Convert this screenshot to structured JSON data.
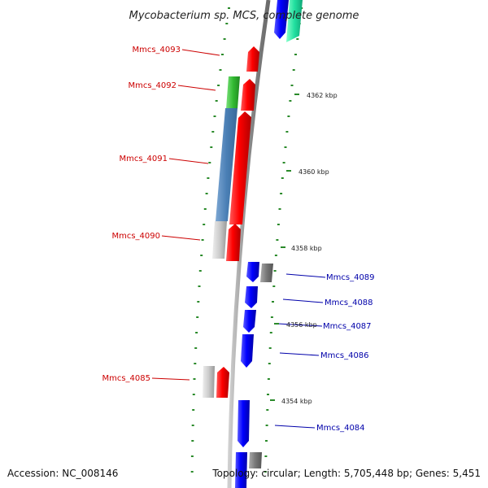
{
  "title": "Mycobacterium sp. MCS, complete genome",
  "footer": {
    "accession": "Accession: NC_008146",
    "topology": "Topology: circular; Length: 5,705,448 bp; Genes: 5,451"
  },
  "colors": {
    "forward_label": "#cc0000",
    "reverse_label": "#0000aa",
    "tick": "#2a8a2a",
    "backbone": "#888888"
  },
  "kbp_labels": [
    {
      "id": "4362",
      "text": "4362 kbp"
    },
    {
      "id": "4360",
      "text": "4360 kbp"
    },
    {
      "id": "4358",
      "text": "4358 kbp"
    },
    {
      "id": "4356",
      "text": "4356 kbp"
    },
    {
      "id": "4354",
      "text": "4354 kbp"
    }
  ],
  "forward_genes": [
    {
      "id": "mmcs-4093",
      "label": "Mmcs_4093"
    },
    {
      "id": "mmcs-4092",
      "label": "Mmcs_4092"
    },
    {
      "id": "mmcs-4091",
      "label": "Mmcs_4091"
    },
    {
      "id": "mmcs-4090",
      "label": "Mmcs_4090"
    },
    {
      "id": "mmcs-4085",
      "label": "Mmcs_4085"
    }
  ],
  "reverse_genes": [
    {
      "id": "mmcs-4089",
      "label": "Mmcs_4089"
    },
    {
      "id": "mmcs-4088",
      "label": "Mmcs_4088"
    },
    {
      "id": "mmcs-4087",
      "label": "Mmcs_4087"
    },
    {
      "id": "mmcs-4086",
      "label": "Mmcs_4086"
    },
    {
      "id": "mmcs-4084",
      "label": "Mmcs_4084"
    }
  ]
}
